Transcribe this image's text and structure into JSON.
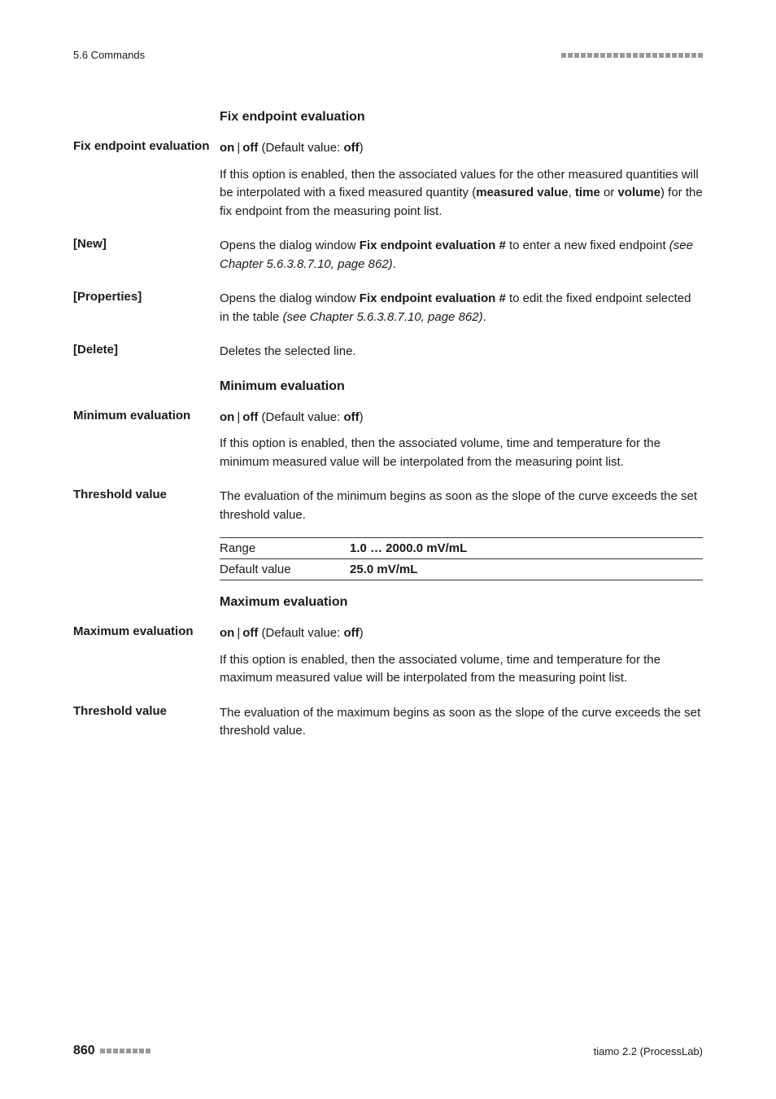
{
  "header": {
    "left": "5.6 Commands",
    "deco_squares": 22
  },
  "sections": {
    "fix_endpoint": {
      "heading": "Fix endpoint evaluation",
      "term_label": "Fix endpoint evaluation",
      "onoff": {
        "on": "on",
        "off": "off",
        "default_prefix": " (Default value: ",
        "default_val": "off",
        "default_suffix": ")"
      },
      "desc_prefix": "If this option is enabled, then the associated values for the other measured quantities will be interpolated with a fixed measured quantity (",
      "desc_bold1": "measured value",
      "desc_mid1": ", ",
      "desc_bold2": "time",
      "desc_mid2": " or ",
      "desc_bold3": "volume",
      "desc_suffix": ") for the fix endpoint from the measuring point list.",
      "new": {
        "label": "[New]",
        "text_pre": "Opens the dialog window ",
        "text_bold": "Fix endpoint evaluation #",
        "text_post": " to enter a new fixed endpoint ",
        "text_ref": "(see Chapter 5.6.3.8.7.10, page 862)",
        "text_end": "."
      },
      "props": {
        "label": "[Properties]",
        "text_pre": "Opens the dialog window ",
        "text_bold": "Fix endpoint evaluation #",
        "text_post": " to edit the fixed endpoint selected in the table ",
        "text_ref": "(see Chapter 5.6.3.8.7.10, page 862)",
        "text_end": "."
      },
      "delete": {
        "label": "[Delete]",
        "text": "Deletes the selected line."
      }
    },
    "min_eval": {
      "heading": "Minimum evaluation",
      "term_label": "Minimum evaluation",
      "onoff": {
        "on": "on",
        "off": "off",
        "default_prefix": " (Default value: ",
        "default_val": "off",
        "default_suffix": ")"
      },
      "desc": "If this option is enabled, then the associated volume, time and temperature for the minimum measured value will be interpolated from the measuring point list.",
      "threshold": {
        "label": "Threshold value",
        "desc": "The evaluation of the minimum begins as soon as the slope of the curve exceeds the set threshold value.",
        "range_label": "Range",
        "range_value": "1.0 … 2000.0 mV/mL",
        "default_label": "Default value",
        "default_value": "25.0 mV/mL"
      }
    },
    "max_eval": {
      "heading": "Maximum evaluation",
      "term_label": "Maximum evaluation",
      "onoff": {
        "on": "on",
        "off": "off",
        "default_prefix": " (Default value: ",
        "default_val": "off",
        "default_suffix": ")"
      },
      "desc": "If this option is enabled, then the associated volume, time and temperature for the maximum measured value will be interpolated from the measuring point list.",
      "threshold": {
        "label": "Threshold value",
        "desc": "The evaluation of the maximum begins as soon as the slope of the curve exceeds the set threshold value."
      }
    }
  },
  "footer": {
    "page": "860",
    "deco_squares": 8,
    "right": "tiamo 2.2 (ProcessLab)"
  },
  "colors": {
    "text": "#1a1a1a",
    "deco": "#999999",
    "rule": "#333333",
    "bg": "#ffffff"
  },
  "typography": {
    "body_fontsize": 15,
    "heading_fontsize": 16,
    "header_fontsize": 13,
    "footer_fontsize": 13,
    "page_num_fontsize": 16
  }
}
